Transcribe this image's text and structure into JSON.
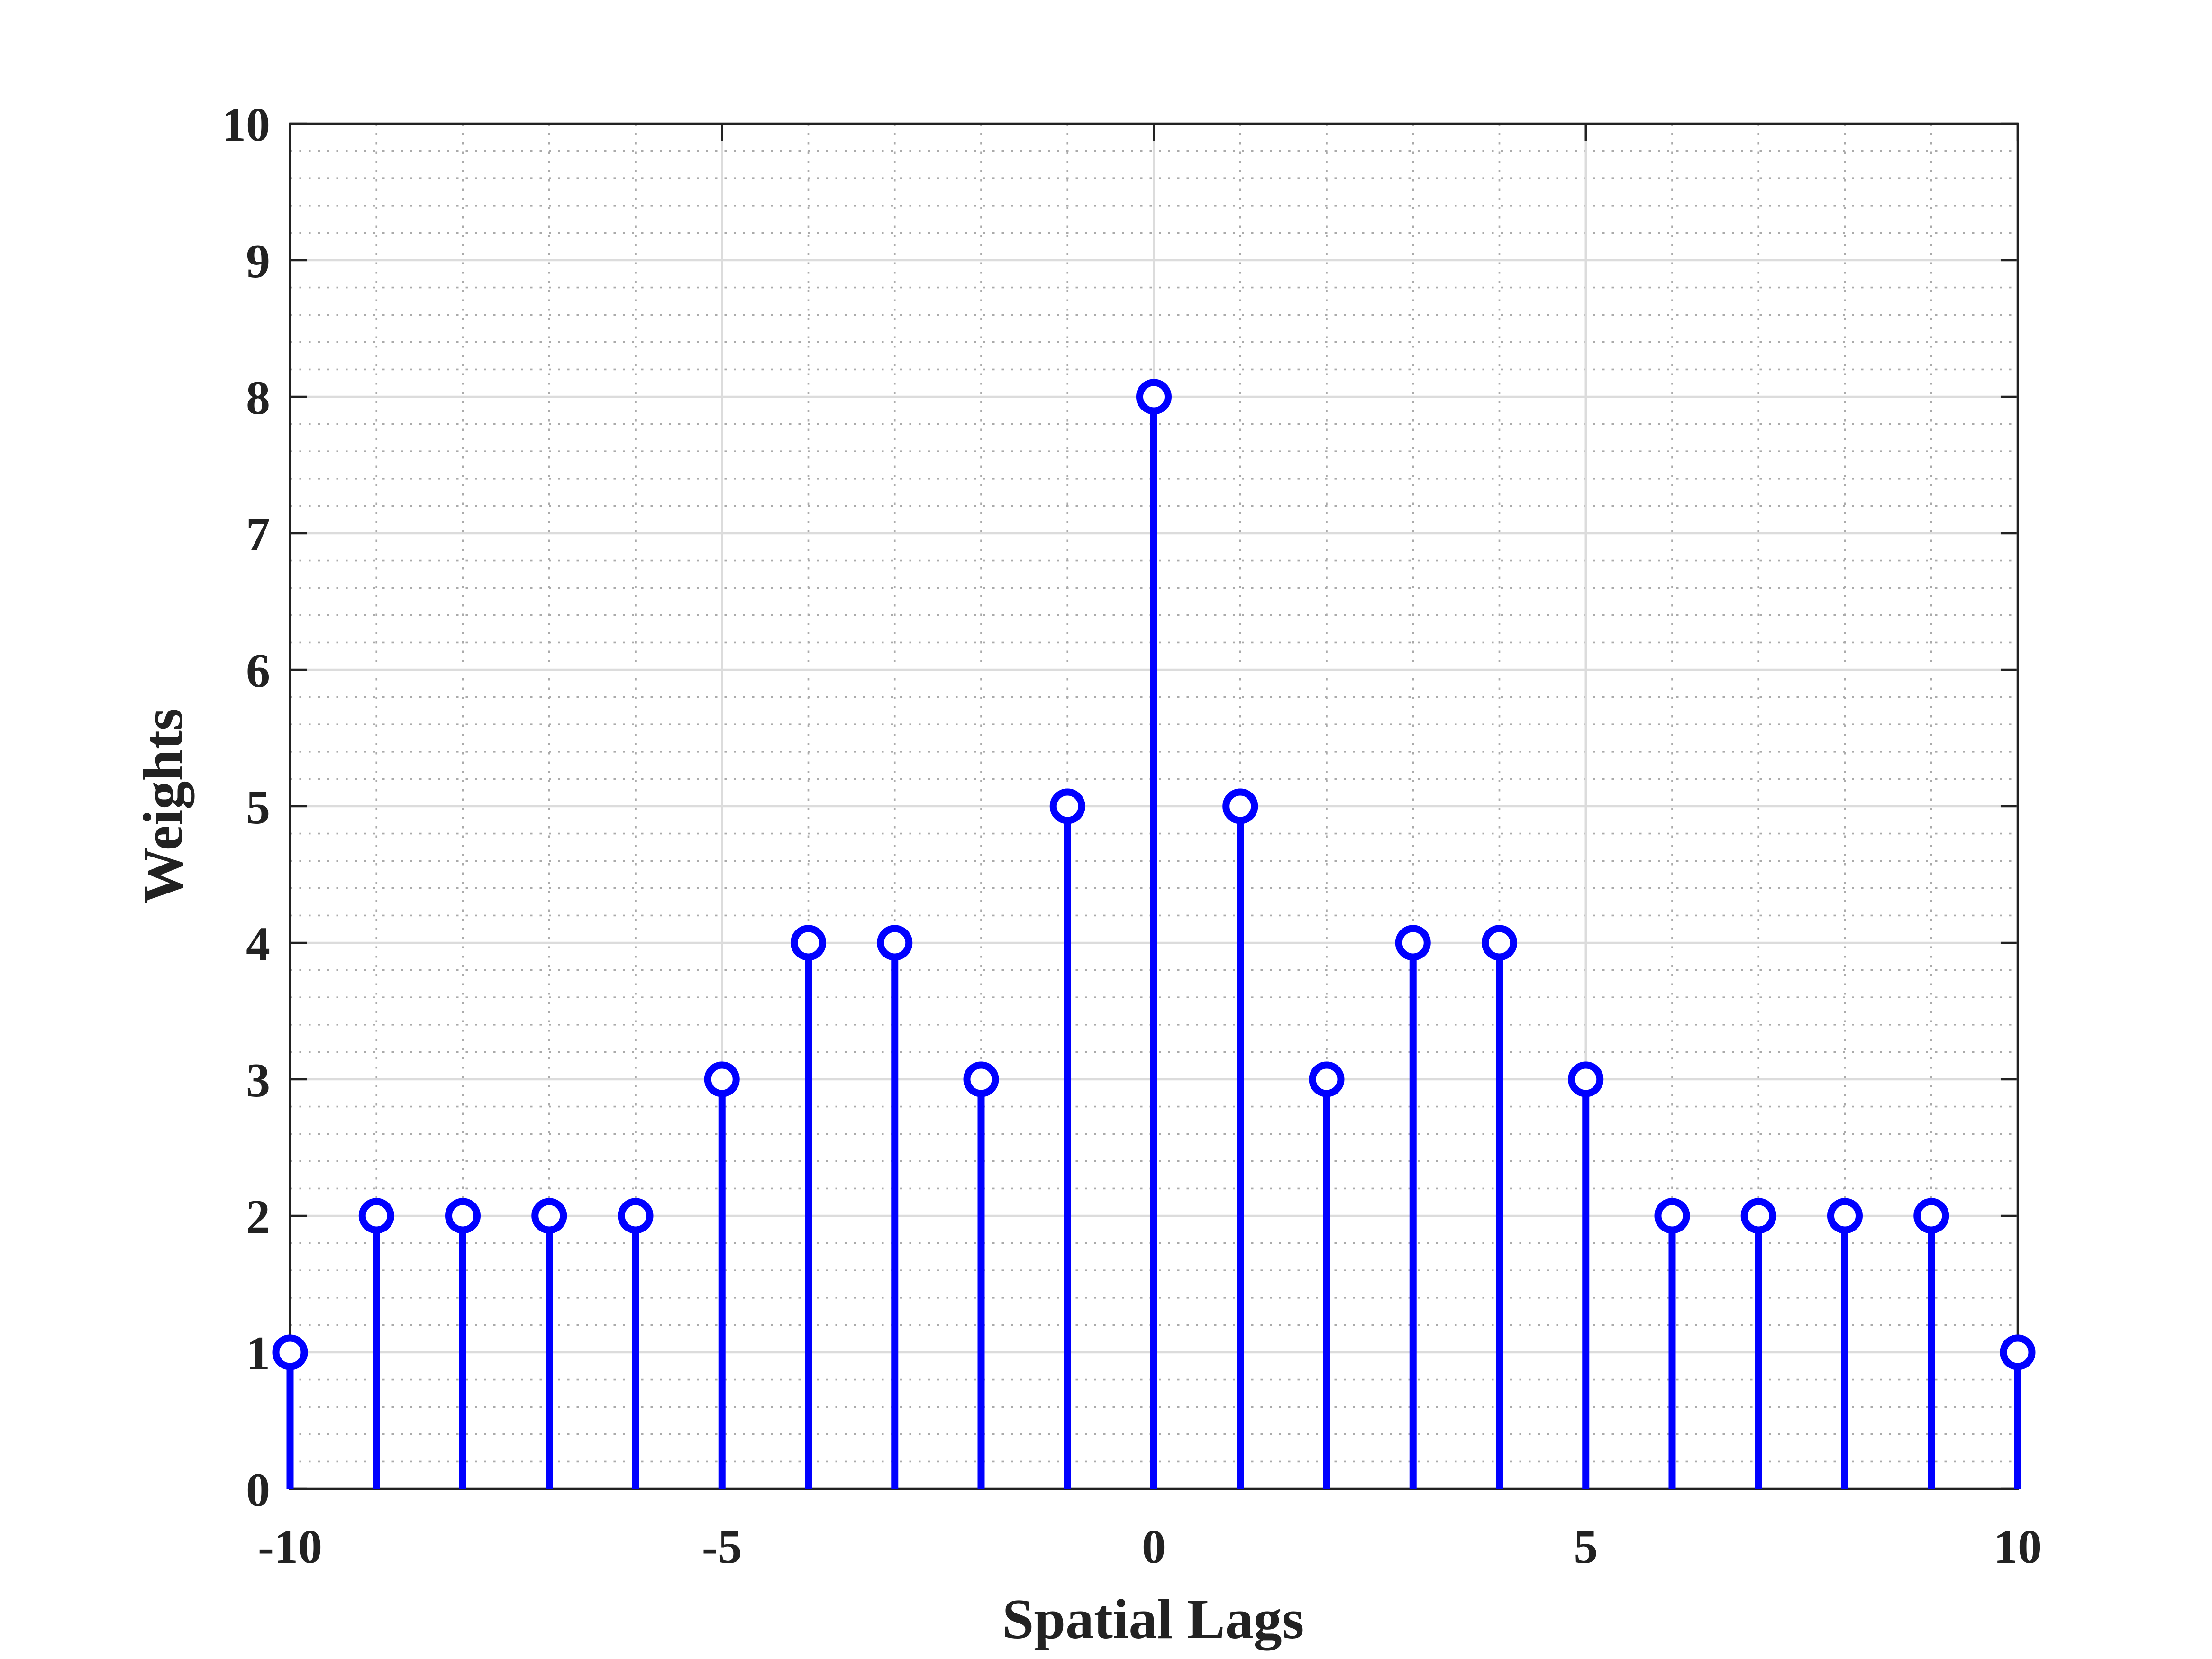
{
  "chart_data": {
    "type": "stem",
    "x": [
      -10,
      -9,
      -8,
      -7,
      -6,
      -5,
      -4,
      -3,
      -2,
      -1,
      0,
      1,
      2,
      3,
      4,
      5,
      6,
      7,
      8,
      9,
      10
    ],
    "values": [
      1,
      2,
      2,
      2,
      2,
      3,
      4,
      4,
      3,
      5,
      8,
      5,
      3,
      4,
      4,
      3,
      2,
      2,
      2,
      2,
      1
    ],
    "color": "#0000ff",
    "xlabel": "Spatial Lags",
    "ylabel": "Weights",
    "xlim": [
      -10,
      10
    ],
    "xticks": [
      -10,
      -5,
      0,
      5,
      10
    ],
    "ylim": [
      0,
      10
    ],
    "yticks": [
      0,
      1,
      2,
      3,
      4,
      5,
      6,
      7,
      8,
      9,
      10
    ],
    "grid": true,
    "minor_grid": true
  }
}
